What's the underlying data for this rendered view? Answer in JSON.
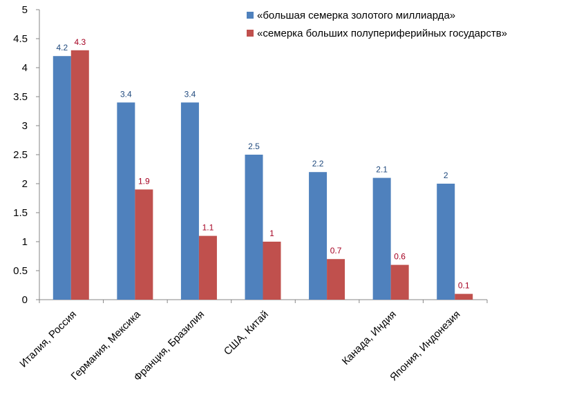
{
  "chart_data": {
    "type": "bar",
    "title": "",
    "xlabel": "",
    "ylabel": "",
    "ylim": [
      0,
      5
    ],
    "yticks": [
      "0",
      "0.5",
      "1",
      "1.5",
      "2",
      "2.5",
      "3",
      "3.5",
      "4",
      "4.5",
      "5"
    ],
    "grid": false,
    "legend_position": "top-right",
    "categories": [
      "Италия, Россия",
      "Германия, Мексика",
      "Франция, Бразилия",
      "США, Китай",
      "",
      "Канада, Индия",
      "Япония, Индонезия"
    ],
    "series": [
      {
        "name": "«большая семерка золотого миллиарда»",
        "color": "#4F81BD",
        "label_color": "#1F497D",
        "values": [
          4.2,
          3.4,
          3.4,
          2.5,
          2.2,
          2.1,
          2
        ],
        "labels": [
          "4.2",
          "3.4",
          "3.4",
          "2.5",
          "2.2",
          "2.1",
          "2"
        ]
      },
      {
        "name": "«семерка больших полупериферийных государств»",
        "color": "#C0504D",
        "label_color": "#A50021",
        "values": [
          4.3,
          1.9,
          1.1,
          1,
          0.7,
          0.6,
          0.1
        ],
        "labels": [
          "4.3",
          "1.9",
          "1.1",
          "1",
          "0.7",
          "0.6",
          "0.1"
        ]
      }
    ]
  }
}
